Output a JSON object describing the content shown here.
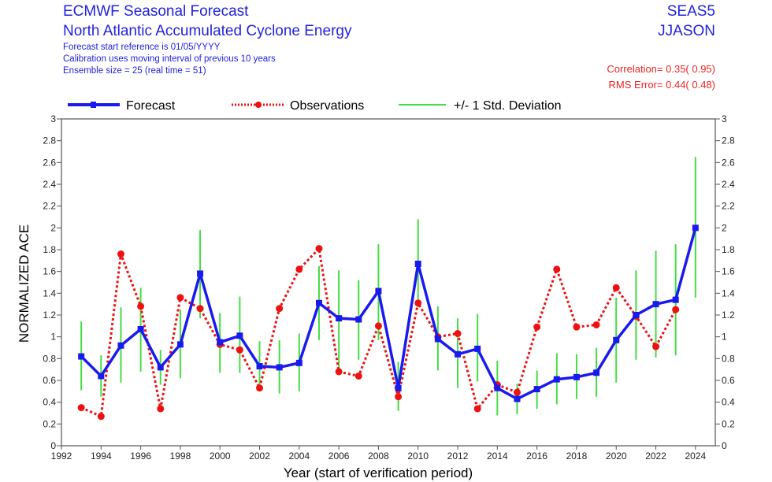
{
  "header": {
    "title": "ECMWF Seasonal Forecast",
    "subtitle": "North Atlantic Accumulated Cyclone Energy",
    "line1": "Forecast start reference is 01/05/YYYY",
    "line2": "Calibration uses moving interval of previous 10 years",
    "line3": "Ensemble size =  25   (real time = 51)",
    "system": "SEAS5",
    "season": "JJASON",
    "correlation": "Correlation= 0.35( 0.95)",
    "rms_error": "RMS Error= 0.44( 0.48)"
  },
  "colors": {
    "forecast": "#1a1aee",
    "observations": "#ee1111",
    "std": "#44dd44",
    "header": "#2222dd",
    "stats": "#ee2222"
  },
  "chart_data": {
    "type": "line",
    "xlabel": "Year (start of verification period)",
    "ylabel": "NORMALIZED ACE",
    "xlim": [
      1992,
      2025
    ],
    "ylim": [
      0,
      3
    ],
    "xticks": [
      1992,
      1994,
      1996,
      1998,
      2000,
      2002,
      2004,
      2006,
      2008,
      2010,
      2012,
      2014,
      2016,
      2018,
      2020,
      2022,
      2024
    ],
    "yticks": [
      0,
      0.2,
      0.4,
      0.6,
      0.8,
      1,
      1.2,
      1.4,
      1.6,
      1.8,
      2,
      2.2,
      2.4,
      2.6,
      2.8,
      3
    ],
    "legend": {
      "position": "top",
      "forecast": "Forecast",
      "observations": "Observations",
      "std": "+/- 1 Std. Deviation"
    },
    "forecast": {
      "x": [
        1993,
        1994,
        1995,
        1996,
        1997,
        1998,
        1999,
        2000,
        2001,
        2002,
        2003,
        2004,
        2005,
        2006,
        2007,
        2008,
        2009,
        2010,
        2011,
        2012,
        2013,
        2014,
        2015,
        2016,
        2017,
        2018,
        2019,
        2020,
        2021,
        2022,
        2023,
        2024
      ],
      "y": [
        0.82,
        0.64,
        0.92,
        1.07,
        0.72,
        0.93,
        1.58,
        0.95,
        1.01,
        0.73,
        0.72,
        0.76,
        1.31,
        1.17,
        1.16,
        1.42,
        0.53,
        1.67,
        0.98,
        0.84,
        0.89,
        0.53,
        0.43,
        0.52,
        0.61,
        0.63,
        0.67,
        0.97,
        1.2,
        1.3,
        1.34,
        2.0
      ]
    },
    "observations": {
      "x": [
        1993,
        1994,
        1995,
        1996,
        1997,
        1998,
        1999,
        2000,
        2001,
        2002,
        2003,
        2004,
        2005,
        2006,
        2007,
        2008,
        2009,
        2010,
        2011,
        2012,
        2013,
        2014,
        2015,
        2016,
        2017,
        2018,
        2019,
        2020,
        2021,
        2022,
        2023
      ],
      "y": [
        0.35,
        0.27,
        1.76,
        1.28,
        0.34,
        1.36,
        1.26,
        0.93,
        0.88,
        0.53,
        1.26,
        1.62,
        1.81,
        0.68,
        0.64,
        1.1,
        0.45,
        1.31,
        1.0,
        1.03,
        0.34,
        0.56,
        0.49,
        1.09,
        1.62,
        1.09,
        1.11,
        1.45,
        1.19,
        0.91,
        1.25
      ]
    },
    "std_low": [
      0.51,
      0.45,
      0.58,
      0.68,
      0.56,
      0.62,
      1.17,
      0.67,
      0.67,
      0.54,
      0.48,
      0.5,
      0.97,
      0.7,
      0.79,
      0.97,
      0.32,
      1.27,
      0.69,
      0.53,
      0.59,
      0.28,
      0.29,
      0.34,
      0.38,
      0.43,
      0.45,
      0.58,
      0.79,
      0.81,
      0.83,
      1.36
    ],
    "std_high": [
      1.14,
      0.83,
      1.27,
      1.45,
      0.88,
      1.25,
      1.98,
      1.22,
      1.37,
      0.96,
      0.97,
      1.03,
      1.65,
      1.61,
      1.52,
      1.85,
      0.77,
      2.08,
      1.28,
      1.17,
      1.21,
      0.78,
      0.57,
      0.69,
      0.85,
      0.84,
      0.9,
      1.36,
      1.61,
      1.79,
      1.85,
      2.65
    ]
  }
}
